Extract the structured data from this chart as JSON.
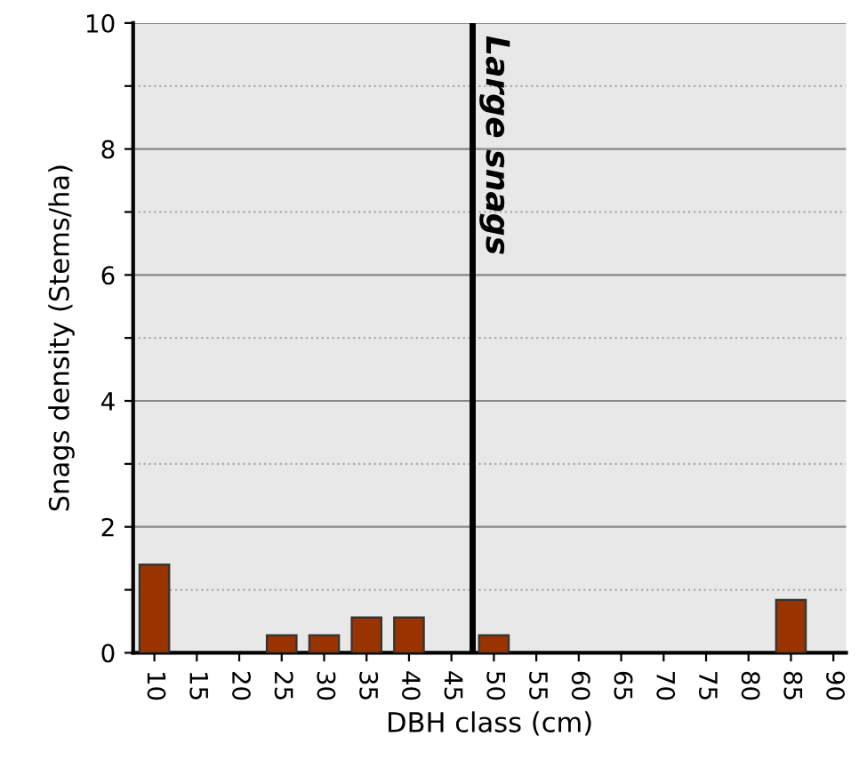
{
  "chart_data": {
    "type": "bar",
    "xlabel": "DBH class (cm)",
    "ylabel": "Snags density (Stems/ha)",
    "x": [
      10,
      15,
      20,
      25,
      30,
      35,
      40,
      45,
      50,
      55,
      60,
      65,
      70,
      75,
      80,
      85,
      90
    ],
    "values": [
      1.4,
      0,
      0,
      0.28,
      0.28,
      0.56,
      0.56,
      0,
      0.28,
      0,
      0,
      0,
      0,
      0,
      0,
      0.84,
      0
    ],
    "color": "#993300",
    "xlim": [
      7.5,
      91.5
    ],
    "xticks": [
      10,
      15,
      20,
      25,
      30,
      35,
      40,
      45,
      50,
      55,
      60,
      65,
      70,
      75,
      80,
      85,
      90
    ],
    "ylim": [
      0,
      10
    ],
    "yticks": [
      0,
      {
        "value": 1,
        "label": null
      },
      2,
      {
        "value": 3,
        "label": null
      },
      4,
      {
        "value": 5,
        "label": null
      },
      6,
      {
        "value": 7,
        "label": null
      },
      8,
      {
        "value": 9,
        "label": null
      },
      10
    ],
    "grid": "y",
    "ref_lines": [
      {
        "axis": "x",
        "value": 47.5,
        "label": "Large snags",
        "color": "#000000"
      }
    ]
  }
}
